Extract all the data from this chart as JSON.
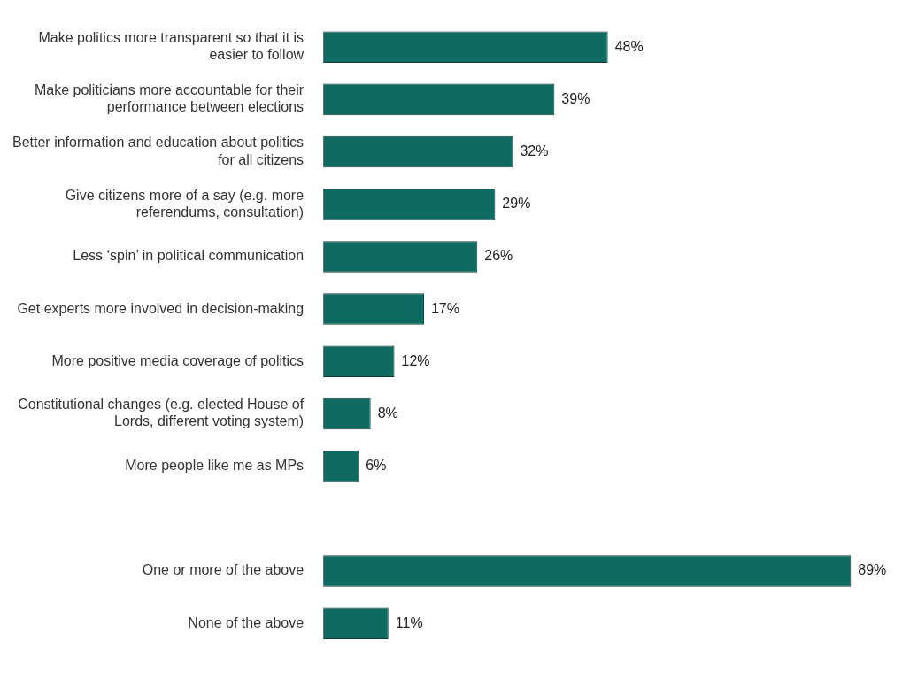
{
  "chart_data": {
    "type": "bar",
    "orientation": "horizontal",
    "categories": [
      "Make politics more transparent so that it is easier to follow",
      "Make politicians more accountable for their performance between elections",
      "Better information and education about politics for all citizens",
      "Give citizens more of a say (e.g. more referendums, consultation)",
      "Less ‘spin’ in political communication",
      "Get experts more involved in decision-making",
      "More positive media coverage of politics",
      "Constitutional changes (e.g. elected House of Lords, different voting system)",
      "More people like me as MPs",
      null,
      "One or more of the above",
      "None of the above"
    ],
    "values": [
      48,
      39,
      32,
      29,
      26,
      17,
      12,
      8,
      6,
      null,
      89,
      11
    ],
    "value_labels": [
      "48%",
      "39%",
      "32%",
      "29%",
      "26%",
      "17%",
      "12%",
      "8%",
      "6%",
      null,
      "89%",
      "11%"
    ],
    "color": "#0f6b62",
    "legend": false,
    "grid": false
  }
}
